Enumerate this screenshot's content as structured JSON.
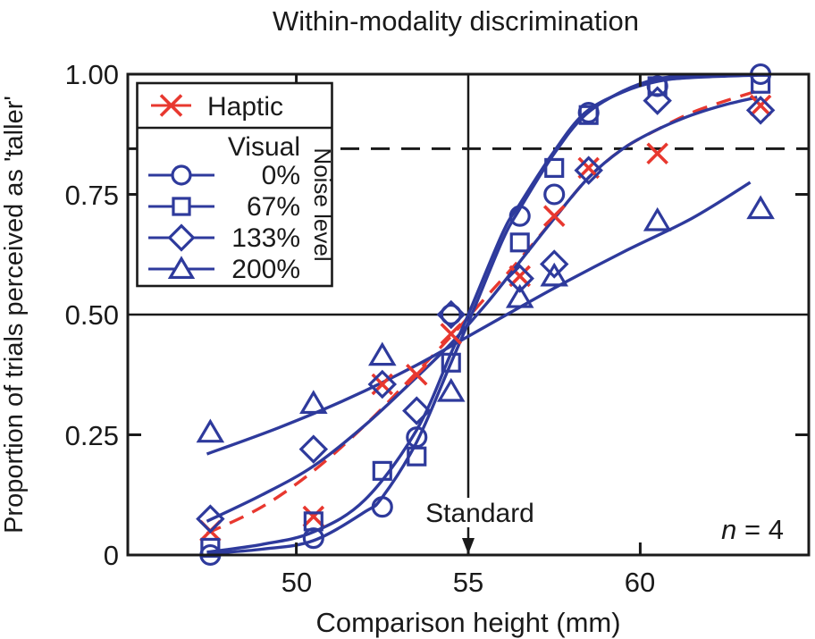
{
  "title": "Within-modality discrimination",
  "x_axis": {
    "label": "Comparison height (mm)",
    "range": [
      45.1,
      64.9
    ],
    "ticks": [
      {
        "value": 50,
        "label": "50"
      },
      {
        "value": 55,
        "label": "55"
      },
      {
        "value": 60,
        "label": "60"
      }
    ],
    "top_tick_values": [
      50,
      60
    ],
    "side_tick_values": [
      0.25,
      0.75
    ]
  },
  "y_axis": {
    "label": "Proportion of trials perceived as 'taller'",
    "range": [
      0,
      1
    ],
    "ticks": [
      {
        "value": 1.0,
        "label": "1.00"
      },
      {
        "value": 0.75,
        "label": "0.75"
      },
      {
        "value": 0.5,
        "label": "0.50"
      },
      {
        "value": 0.25,
        "label": "0.25"
      },
      {
        "value": 0,
        "label": "0"
      }
    ]
  },
  "annotations": {
    "standard": "Standard",
    "n_italic": "n",
    "n_rest": " = 4"
  },
  "legend": {
    "haptic_label": "Haptic",
    "visual_label": "Visual",
    "noise_label": "Noise level",
    "items": [
      {
        "label": "0%",
        "marker": "circle"
      },
      {
        "label": "67%",
        "marker": "square"
      },
      {
        "label": "133%",
        "marker": "diamond"
      },
      {
        "label": "200%",
        "marker": "triangle"
      }
    ]
  },
  "colors": {
    "haptic": "#e8382f",
    "visual": "#2e3a9c",
    "axis": "#1a1a1a"
  },
  "chart_data": {
    "type": "scatter",
    "title": "Within-modality discrimination",
    "xlabel": "Comparison height (mm)",
    "ylabel": "Proportion of trials perceived as 'taller'",
    "xlim": [
      45.1,
      64.9
    ],
    "ylim": [
      0,
      1
    ],
    "grid": false,
    "legend_position": "upper-left",
    "n": 4,
    "reference_lines": {
      "pse_horizontal_solid": 0.5,
      "threshold_horizontal_dashed": 0.845,
      "standard_vertical": 55
    },
    "series": [
      {
        "name": "Haptic",
        "marker": "x-cross",
        "color": "#e8382f",
        "line_style": "dashed",
        "points": [
          [
            47.5,
            0.05
          ],
          [
            50.5,
            0.08
          ],
          [
            52.5,
            0.355
          ],
          [
            53.5,
            0.375
          ],
          [
            54.5,
            0.46
          ],
          [
            56.5,
            0.58
          ],
          [
            57.5,
            0.705
          ],
          [
            58.5,
            0.805
          ],
          [
            60.5,
            0.835
          ],
          [
            63.5,
            0.935
          ]
        ],
        "fit_curve": [
          [
            47.4,
            0.045
          ],
          [
            49.0,
            0.1
          ],
          [
            50.5,
            0.175
          ],
          [
            52.0,
            0.27
          ],
          [
            53.5,
            0.38
          ],
          [
            54.5,
            0.455
          ],
          [
            55.5,
            0.535
          ],
          [
            56.5,
            0.615
          ],
          [
            57.5,
            0.7
          ],
          [
            58.5,
            0.785
          ],
          [
            59.5,
            0.845
          ],
          [
            60.5,
            0.885
          ],
          [
            61.5,
            0.92
          ],
          [
            62.5,
            0.945
          ],
          [
            63.4,
            0.965
          ]
        ]
      },
      {
        "name": "Visual 0% noise",
        "marker": "circle",
        "color": "#2e3a9c",
        "line_style": "solid",
        "points": [
          [
            47.5,
            0.0
          ],
          [
            50.5,
            0.035
          ],
          [
            52.5,
            0.1
          ],
          [
            53.5,
            0.245
          ],
          [
            54.5,
            0.5
          ],
          [
            56.5,
            0.705
          ],
          [
            57.5,
            0.75
          ],
          [
            58.5,
            0.92
          ],
          [
            60.5,
            0.975
          ],
          [
            63.5,
            1.0
          ]
        ],
        "fit_curve": [
          [
            47.4,
            0.003
          ],
          [
            49.0,
            0.012
          ],
          [
            50.5,
            0.03
          ],
          [
            52.0,
            0.09
          ],
          [
            52.5,
            0.12
          ],
          [
            53.5,
            0.235
          ],
          [
            54.5,
            0.4
          ],
          [
            55.1,
            0.5
          ],
          [
            56.0,
            0.655
          ],
          [
            56.5,
            0.72
          ],
          [
            57.5,
            0.835
          ],
          [
            58.4,
            0.915
          ],
          [
            59.5,
            0.965
          ],
          [
            60.5,
            0.99
          ],
          [
            61.5,
            0.997
          ],
          [
            63.4,
            1.0
          ]
        ]
      },
      {
        "name": "Visual 67% noise",
        "marker": "square",
        "color": "#2e3a9c",
        "line_style": "solid",
        "points": [
          [
            47.5,
            0.015
          ],
          [
            50.5,
            0.07
          ],
          [
            52.5,
            0.175
          ],
          [
            53.5,
            0.205
          ],
          [
            54.5,
            0.4
          ],
          [
            56.5,
            0.65
          ],
          [
            57.5,
            0.805
          ],
          [
            58.5,
            0.915
          ],
          [
            60.5,
            0.975
          ],
          [
            63.5,
            0.98
          ]
        ],
        "fit_curve": [
          [
            47.4,
            0.006
          ],
          [
            49.0,
            0.022
          ],
          [
            50.5,
            0.048
          ],
          [
            52.0,
            0.115
          ],
          [
            53.5,
            0.26
          ],
          [
            54.5,
            0.42
          ],
          [
            55.0,
            0.5
          ],
          [
            56.0,
            0.67
          ],
          [
            56.5,
            0.73
          ],
          [
            57.5,
            0.84
          ],
          [
            58.4,
            0.92
          ],
          [
            59.5,
            0.963
          ],
          [
            60.5,
            0.985
          ],
          [
            61.5,
            0.993
          ],
          [
            63.4,
            0.998
          ]
        ]
      },
      {
        "name": "Visual 133% noise",
        "marker": "diamond",
        "color": "#2e3a9c",
        "line_style": "solid",
        "points": [
          [
            47.5,
            0.075
          ],
          [
            50.5,
            0.22
          ],
          [
            52.5,
            0.355
          ],
          [
            53.5,
            0.3
          ],
          [
            54.5,
            0.5
          ],
          [
            56.5,
            0.575
          ],
          [
            57.5,
            0.605
          ],
          [
            58.5,
            0.8
          ],
          [
            60.5,
            0.945
          ],
          [
            63.5,
            0.925
          ]
        ],
        "fit_curve": [
          [
            47.4,
            0.07
          ],
          [
            49.0,
            0.125
          ],
          [
            50.5,
            0.185
          ],
          [
            52.0,
            0.27
          ],
          [
            53.5,
            0.37
          ],
          [
            54.5,
            0.44
          ],
          [
            55.5,
            0.52
          ],
          [
            56.5,
            0.61
          ],
          [
            57.5,
            0.7
          ],
          [
            58.5,
            0.785
          ],
          [
            59.5,
            0.845
          ],
          [
            60.5,
            0.885
          ],
          [
            61.5,
            0.915
          ],
          [
            62.5,
            0.937
          ],
          [
            63.4,
            0.952
          ]
        ]
      },
      {
        "name": "Visual 200% noise",
        "marker": "triangle",
        "color": "#2e3a9c",
        "line_style": "solid",
        "points": [
          [
            47.5,
            0.255
          ],
          [
            50.5,
            0.315
          ],
          [
            52.5,
            0.415
          ],
          [
            54.5,
            0.34
          ],
          [
            56.5,
            0.535
          ],
          [
            57.5,
            0.58
          ],
          [
            60.5,
            0.695
          ],
          [
            63.5,
            0.72
          ]
        ],
        "fit_curve": [
          [
            47.4,
            0.21
          ],
          [
            49.5,
            0.265
          ],
          [
            51.5,
            0.325
          ],
          [
            53.5,
            0.395
          ],
          [
            55.5,
            0.475
          ],
          [
            57.5,
            0.555
          ],
          [
            59.5,
            0.63
          ],
          [
            61.5,
            0.7
          ],
          [
            63.2,
            0.775
          ]
        ]
      }
    ]
  }
}
